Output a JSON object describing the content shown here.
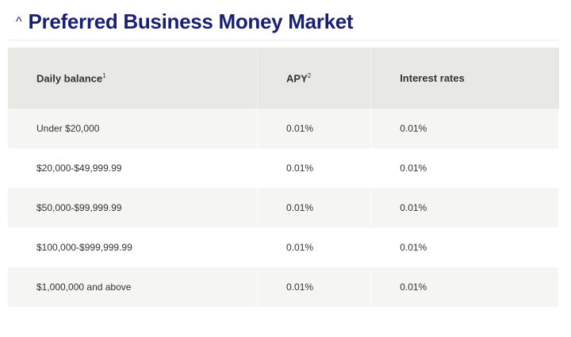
{
  "section": {
    "title": "Preferred Business Money Market",
    "toggle_icon": "chevron-up-icon"
  },
  "table": {
    "headers": [
      {
        "label": "Daily balance",
        "footnote": "1"
      },
      {
        "label": "APY",
        "footnote": "2"
      },
      {
        "label": "Interest rates",
        "footnote": ""
      }
    ],
    "rows": [
      [
        "Under $20,000",
        "0.01%",
        "0.01%"
      ],
      [
        "$20,000-$49,999.99",
        "0.01%",
        "0.01%"
      ],
      [
        "$50,000-$99,999.99",
        "0.01%",
        "0.01%"
      ],
      [
        "$100,000-$999,999.99",
        "0.01%",
        "0.01%"
      ],
      [
        "$1,000,000 and above",
        "0.01%",
        "0.01%"
      ]
    ]
  }
}
